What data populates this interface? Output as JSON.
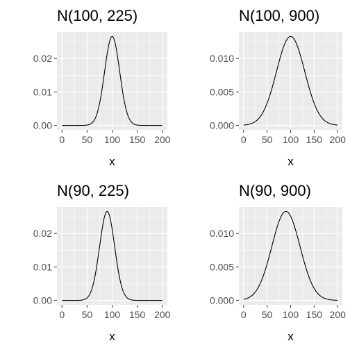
{
  "colors": {
    "panel_background": "#ebebeb",
    "grid": "#ffffff",
    "line": "#000000",
    "tick_text": "#4d4d4d"
  },
  "chart_data": [
    {
      "type": "line",
      "title": "N(100, 225)",
      "xlabel": "x",
      "ylabel": "",
      "mean": 100,
      "variance": 225,
      "x_range": [
        0,
        200
      ],
      "xlim": [
        0,
        200
      ],
      "ylim": [
        0,
        0.0266
      ],
      "x_ticks": [
        0,
        50,
        100,
        150,
        200
      ],
      "x_tick_labels": [
        "0",
        "50",
        "100",
        "150",
        "200"
      ],
      "y_ticks": [
        0,
        0.01,
        0.02
      ],
      "y_tick_labels": [
        "0.00",
        "0.01",
        "0.02"
      ],
      "grid": true
    },
    {
      "type": "line",
      "title": "N(100, 900)",
      "xlabel": "x",
      "ylabel": "",
      "mean": 100,
      "variance": 900,
      "x_range": [
        0,
        200
      ],
      "xlim": [
        0,
        200
      ],
      "ylim": [
        0,
        0.0133
      ],
      "x_ticks": [
        0,
        50,
        100,
        150,
        200
      ],
      "x_tick_labels": [
        "0",
        "50",
        "100",
        "150",
        "200"
      ],
      "y_ticks": [
        0,
        0.005,
        0.01
      ],
      "y_tick_labels": [
        "0.000",
        "0.005",
        "0.010"
      ],
      "grid": true
    },
    {
      "type": "line",
      "title": "N(90, 225)",
      "xlabel": "x",
      "ylabel": "",
      "mean": 90,
      "variance": 225,
      "x_range": [
        0,
        200
      ],
      "xlim": [
        0,
        200
      ],
      "ylim": [
        0,
        0.0266
      ],
      "x_ticks": [
        0,
        50,
        100,
        150,
        200
      ],
      "x_tick_labels": [
        "0",
        "50",
        "100",
        "150",
        "200"
      ],
      "y_ticks": [
        0,
        0.01,
        0.02
      ],
      "y_tick_labels": [
        "0.00",
        "0.01",
        "0.02"
      ],
      "grid": true
    },
    {
      "type": "line",
      "title": "N(90, 900)",
      "xlabel": "x",
      "ylabel": "",
      "mean": 90,
      "variance": 900,
      "x_range": [
        0,
        200
      ],
      "xlim": [
        0,
        200
      ],
      "ylim": [
        0,
        0.0133
      ],
      "x_ticks": [
        0,
        50,
        100,
        150,
        200
      ],
      "x_tick_labels": [
        "0",
        "50",
        "100",
        "150",
        "200"
      ],
      "y_ticks": [
        0,
        0.005,
        0.01
      ],
      "y_tick_labels": [
        "0.000",
        "0.005",
        "0.010"
      ],
      "grid": true
    }
  ]
}
